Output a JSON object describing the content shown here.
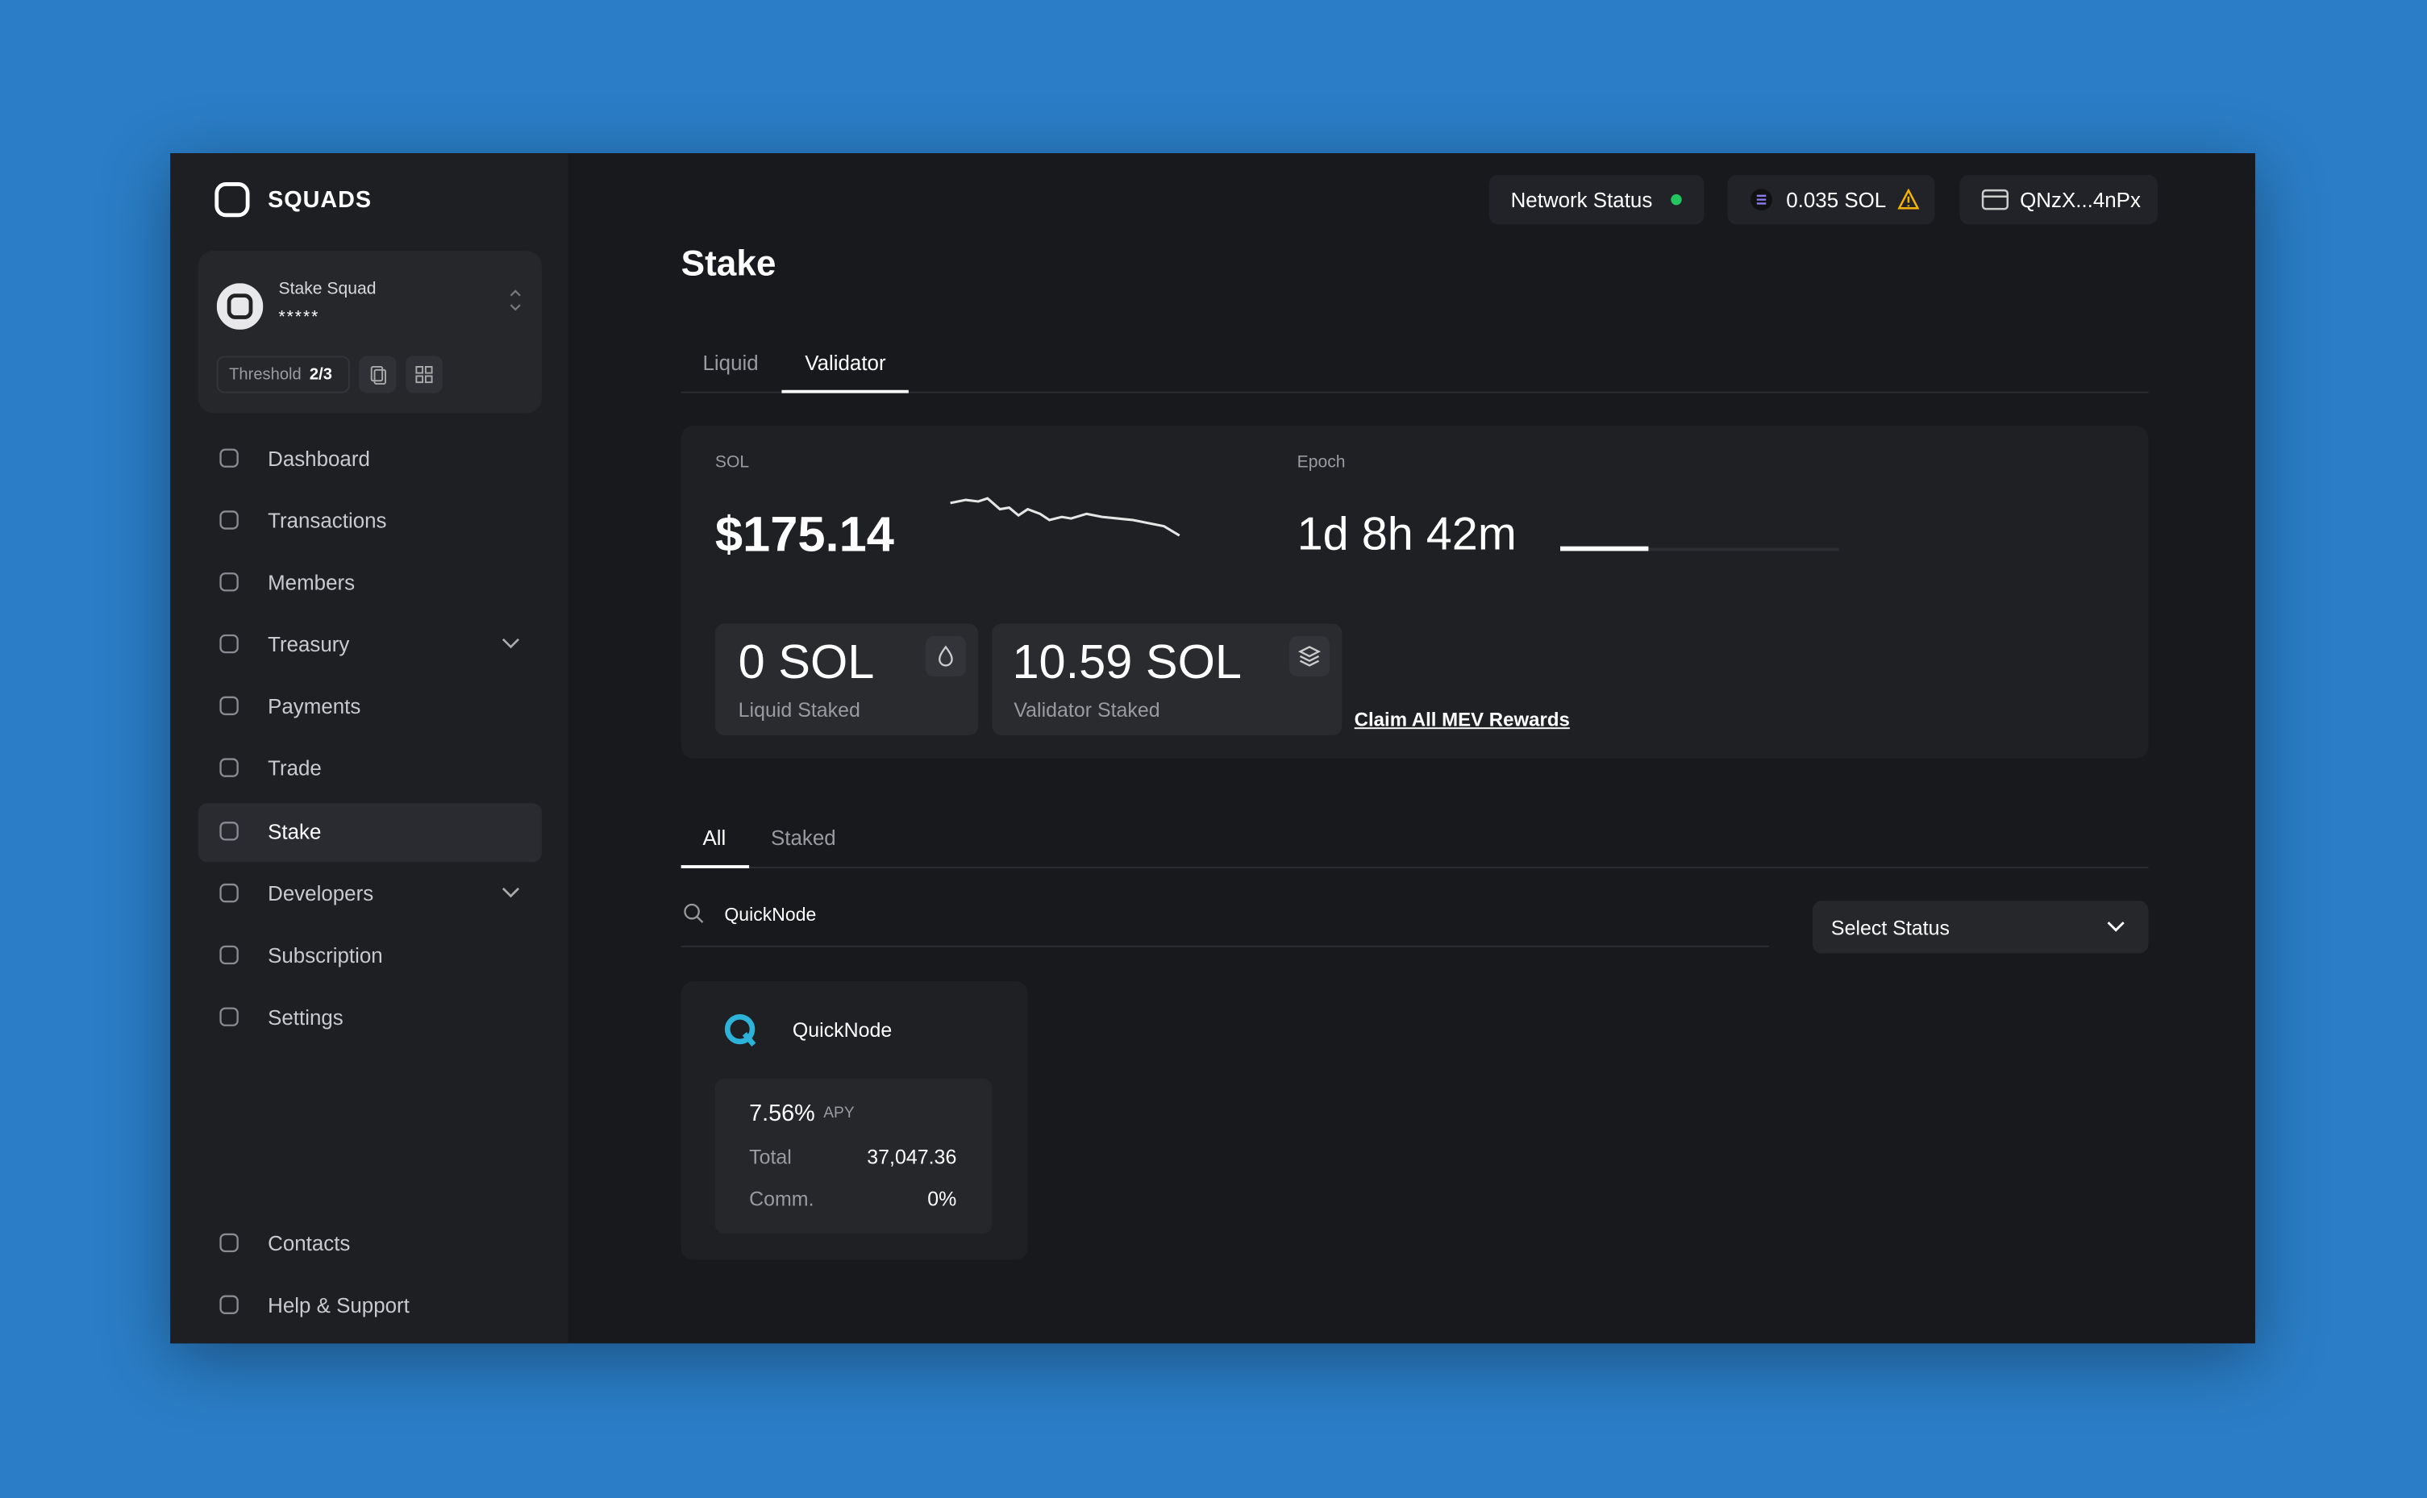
{
  "brand": "SQUADS",
  "topbar": {
    "network_status": "Network Status",
    "balance": "0.035 SOL",
    "wallet": "QNzX...4nPx"
  },
  "squad": {
    "name": "Stake Squad",
    "address": "*****",
    "threshold_label": "Threshold",
    "threshold": "2/3"
  },
  "nav": [
    "Dashboard",
    "Transactions",
    "Members",
    "Treasury",
    "Payments",
    "Trade",
    "Stake",
    "Developers",
    "Subscription",
    "Settings"
  ],
  "nav_bottom": [
    "Contacts",
    "Help & Support"
  ],
  "page": {
    "title": "Stake",
    "tabs": [
      "Liquid",
      "Validator"
    ],
    "stats": {
      "sol_label": "SOL",
      "sol_price": "$175.14",
      "epoch_label": "Epoch",
      "epoch_remaining": "1d 8h 42m",
      "liquid_amount": "0 SOL",
      "liquid_label": "Liquid Staked",
      "validator_amount": "10.59 SOL",
      "validator_label": "Validator Staked",
      "claim": "Claim All MEV Rewards"
    },
    "filter_tabs": [
      "All",
      "Staked"
    ],
    "search": "QuickNode",
    "status_select": "Select Status",
    "validators": [
      {
        "name": "QuickNode",
        "apy": "7.56%",
        "apy_label": "APY",
        "total_label": "Total",
        "total": "37,047.36",
        "comm_label": "Comm.",
        "comm": "0%"
      }
    ]
  }
}
